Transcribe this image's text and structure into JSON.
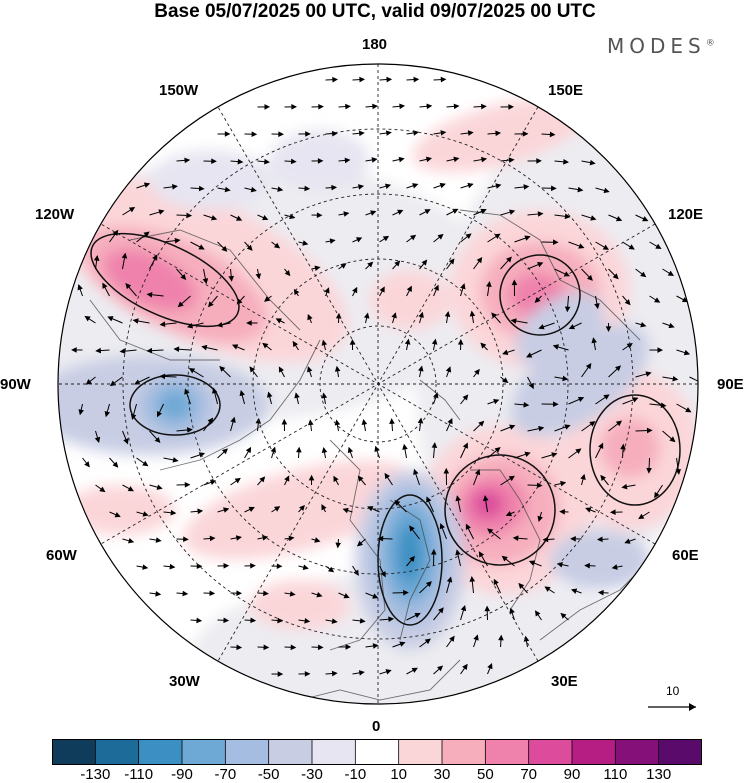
{
  "title": "Base 05/07/2025 00 UTC, valid 09/07/2025 00 UTC",
  "brand": "MODES",
  "brand_mark": "®",
  "longitude_labels": {
    "lon_180": "180",
    "lon_150e": "150E",
    "lon_120e": "120E",
    "lon_90e": "90E",
    "lon_60e": "60E",
    "lon_30e": "30E",
    "lon_0": "0",
    "lon_30w": "30W",
    "lon_60w": "60W",
    "lon_90w": "90W",
    "lon_120w": "120W",
    "lon_150w": "150W"
  },
  "reference_vector_label": "10",
  "colorbar": {
    "tick_labels": [
      "-130",
      "-110",
      "-90",
      "-70",
      "-50",
      "-30",
      "-10",
      "10",
      "30",
      "50",
      "70",
      "90",
      "110",
      "130"
    ],
    "colors": [
      "#0f3c5a",
      "#1d6b98",
      "#3b8fc2",
      "#6ea9d6",
      "#a5bde0",
      "#c8cde4",
      "#e6e5f1",
      "#ffffff",
      "#fbd6d9",
      "#f6aebd",
      "#ef82ac",
      "#dc4b9c",
      "#b71e84",
      "#86107a",
      "#5a0a6a"
    ]
  }
}
